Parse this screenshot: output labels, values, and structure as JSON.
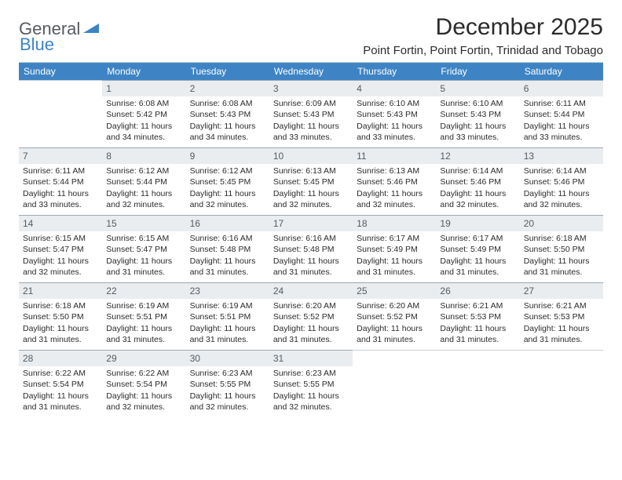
{
  "logo": {
    "word1": "General",
    "word2": "Blue"
  },
  "title": "December 2025",
  "location": "Point Fortin, Point Fortin, Trinidad and Tobago",
  "colors": {
    "header_bg": "#3e84c4",
    "header_text": "#ffffff",
    "daynum_bg": "#e9edf0",
    "daynum_text": "#555b60",
    "body_text": "#2b2b2b",
    "rule": "#9ca8b2",
    "page_bg": "#ffffff"
  },
  "weekdays": [
    "Sunday",
    "Monday",
    "Tuesday",
    "Wednesday",
    "Thursday",
    "Friday",
    "Saturday"
  ],
  "leading_blanks": 1,
  "days": [
    {
      "n": 1,
      "sunrise": "6:08 AM",
      "sunset": "5:42 PM",
      "daylight": "11 hours and 34 minutes."
    },
    {
      "n": 2,
      "sunrise": "6:08 AM",
      "sunset": "5:43 PM",
      "daylight": "11 hours and 34 minutes."
    },
    {
      "n": 3,
      "sunrise": "6:09 AM",
      "sunset": "5:43 PM",
      "daylight": "11 hours and 33 minutes."
    },
    {
      "n": 4,
      "sunrise": "6:10 AM",
      "sunset": "5:43 PM",
      "daylight": "11 hours and 33 minutes."
    },
    {
      "n": 5,
      "sunrise": "6:10 AM",
      "sunset": "5:43 PM",
      "daylight": "11 hours and 33 minutes."
    },
    {
      "n": 6,
      "sunrise": "6:11 AM",
      "sunset": "5:44 PM",
      "daylight": "11 hours and 33 minutes."
    },
    {
      "n": 7,
      "sunrise": "6:11 AM",
      "sunset": "5:44 PM",
      "daylight": "11 hours and 33 minutes."
    },
    {
      "n": 8,
      "sunrise": "6:12 AM",
      "sunset": "5:44 PM",
      "daylight": "11 hours and 32 minutes."
    },
    {
      "n": 9,
      "sunrise": "6:12 AM",
      "sunset": "5:45 PM",
      "daylight": "11 hours and 32 minutes."
    },
    {
      "n": 10,
      "sunrise": "6:13 AM",
      "sunset": "5:45 PM",
      "daylight": "11 hours and 32 minutes."
    },
    {
      "n": 11,
      "sunrise": "6:13 AM",
      "sunset": "5:46 PM",
      "daylight": "11 hours and 32 minutes."
    },
    {
      "n": 12,
      "sunrise": "6:14 AM",
      "sunset": "5:46 PM",
      "daylight": "11 hours and 32 minutes."
    },
    {
      "n": 13,
      "sunrise": "6:14 AM",
      "sunset": "5:46 PM",
      "daylight": "11 hours and 32 minutes."
    },
    {
      "n": 14,
      "sunrise": "6:15 AM",
      "sunset": "5:47 PM",
      "daylight": "11 hours and 32 minutes."
    },
    {
      "n": 15,
      "sunrise": "6:15 AM",
      "sunset": "5:47 PM",
      "daylight": "11 hours and 31 minutes."
    },
    {
      "n": 16,
      "sunrise": "6:16 AM",
      "sunset": "5:48 PM",
      "daylight": "11 hours and 31 minutes."
    },
    {
      "n": 17,
      "sunrise": "6:16 AM",
      "sunset": "5:48 PM",
      "daylight": "11 hours and 31 minutes."
    },
    {
      "n": 18,
      "sunrise": "6:17 AM",
      "sunset": "5:49 PM",
      "daylight": "11 hours and 31 minutes."
    },
    {
      "n": 19,
      "sunrise": "6:17 AM",
      "sunset": "5:49 PM",
      "daylight": "11 hours and 31 minutes."
    },
    {
      "n": 20,
      "sunrise": "6:18 AM",
      "sunset": "5:50 PM",
      "daylight": "11 hours and 31 minutes."
    },
    {
      "n": 21,
      "sunrise": "6:18 AM",
      "sunset": "5:50 PM",
      "daylight": "11 hours and 31 minutes."
    },
    {
      "n": 22,
      "sunrise": "6:19 AM",
      "sunset": "5:51 PM",
      "daylight": "11 hours and 31 minutes."
    },
    {
      "n": 23,
      "sunrise": "6:19 AM",
      "sunset": "5:51 PM",
      "daylight": "11 hours and 31 minutes."
    },
    {
      "n": 24,
      "sunrise": "6:20 AM",
      "sunset": "5:52 PM",
      "daylight": "11 hours and 31 minutes."
    },
    {
      "n": 25,
      "sunrise": "6:20 AM",
      "sunset": "5:52 PM",
      "daylight": "11 hours and 31 minutes."
    },
    {
      "n": 26,
      "sunrise": "6:21 AM",
      "sunset": "5:53 PM",
      "daylight": "11 hours and 31 minutes."
    },
    {
      "n": 27,
      "sunrise": "6:21 AM",
      "sunset": "5:53 PM",
      "daylight": "11 hours and 31 minutes."
    },
    {
      "n": 28,
      "sunrise": "6:22 AM",
      "sunset": "5:54 PM",
      "daylight": "11 hours and 31 minutes."
    },
    {
      "n": 29,
      "sunrise": "6:22 AM",
      "sunset": "5:54 PM",
      "daylight": "11 hours and 32 minutes."
    },
    {
      "n": 30,
      "sunrise": "6:23 AM",
      "sunset": "5:55 PM",
      "daylight": "11 hours and 32 minutes."
    },
    {
      "n": 31,
      "sunrise": "6:23 AM",
      "sunset": "5:55 PM",
      "daylight": "11 hours and 32 minutes."
    }
  ],
  "labels": {
    "sunrise": "Sunrise:",
    "sunset": "Sunset:",
    "daylight": "Daylight:"
  }
}
